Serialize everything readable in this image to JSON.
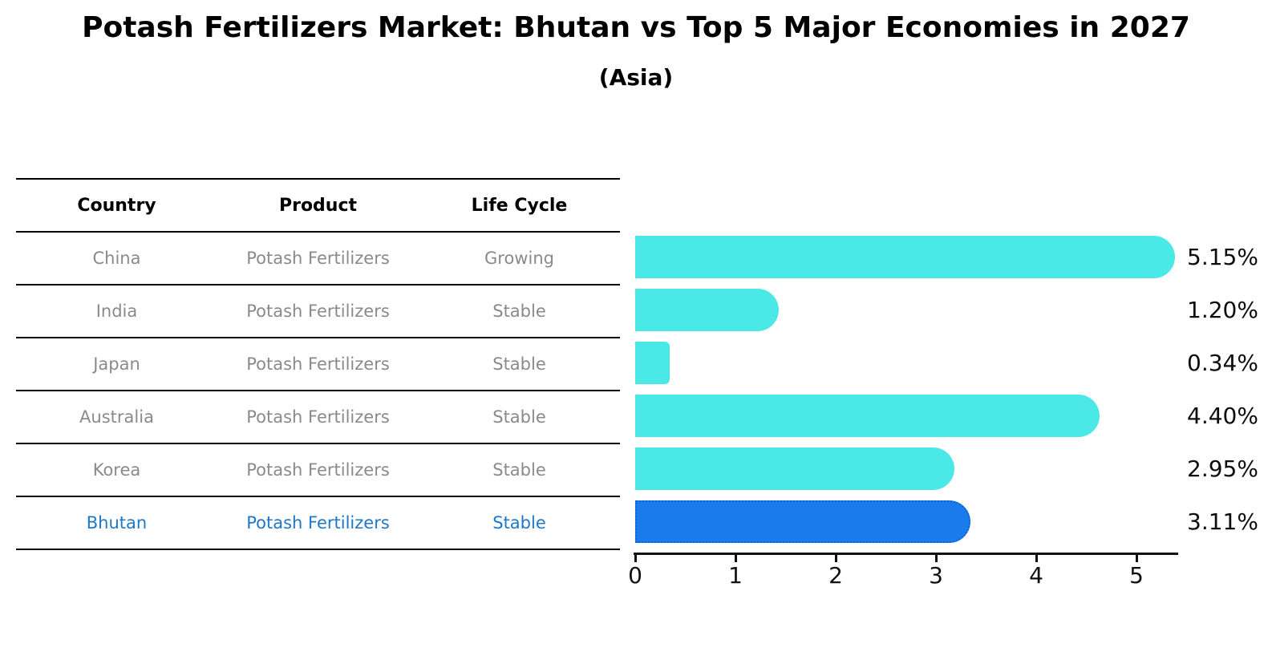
{
  "title": "Potash Fertilizers Market: Bhutan vs Top 5 Major Economies in 2027",
  "subtitle": "(Asia)",
  "table": {
    "columns": [
      "Country",
      "Product",
      "Life Cycle"
    ],
    "rows": [
      {
        "country": "China",
        "product": "Potash Fertilizers",
        "life_cycle": "Growing",
        "highlight": false
      },
      {
        "country": "India",
        "product": "Potash Fertilizers",
        "life_cycle": "Stable",
        "highlight": false
      },
      {
        "country": "Japan",
        "product": "Potash Fertilizers",
        "life_cycle": "Stable",
        "highlight": false
      },
      {
        "country": "Australia",
        "product": "Potash Fertilizers",
        "life_cycle": "Stable",
        "highlight": false
      },
      {
        "country": "Korea",
        "product": "Potash Fertilizers",
        "life_cycle": "Stable",
        "highlight": false
      },
      {
        "country": "Bhutan",
        "product": "Potash Fertilizers",
        "life_cycle": "Stable",
        "highlight": true
      }
    ]
  },
  "chart_data": {
    "type": "bar",
    "orientation": "horizontal",
    "title": "Potash Fertilizers Market: Bhutan vs Top 5 Major Economies in 2027",
    "subtitle": "(Asia)",
    "categories": [
      "China",
      "India",
      "Japan",
      "Australia",
      "Korea",
      "Bhutan"
    ],
    "values": [
      5.15,
      1.2,
      0.34,
      4.4,
      2.95,
      3.11
    ],
    "value_labels": [
      "5.15%",
      "1.20%",
      "0.34%",
      "4.40%",
      "2.95%",
      "3.11%"
    ],
    "x_ticks": [
      0,
      1,
      2,
      3,
      4,
      5
    ],
    "xlim": [
      0,
      5.43
    ],
    "xlabel": "",
    "ylabel": "",
    "grid": false,
    "legend": "none",
    "highlight_category": "Bhutan"
  },
  "colors": {
    "bar_default": "#4ae8e6",
    "bar_highlight": "#1a7cec",
    "bar_highlight_border": "#1160d8",
    "highlight_text": "#1f77c8",
    "row_text": "#8a8a8a",
    "header_text": "#000000",
    "axis": "#111111",
    "background": "#ffffff"
  }
}
